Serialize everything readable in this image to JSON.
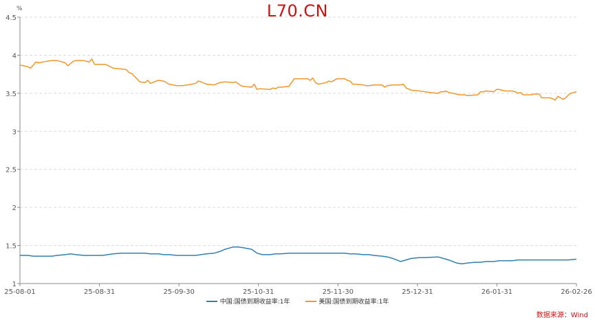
{
  "watermark": "L70.CN",
  "source": "数据来源：Wind",
  "chart_data": {
    "type": "line",
    "title": "",
    "ylabel": "%",
    "xlabel": "",
    "ylim": [
      1,
      4.5
    ],
    "yticks": [
      "1",
      "1.5",
      "2",
      "2.5",
      "3",
      "3.5",
      "4",
      "4.5"
    ],
    "x_tick_labels": [
      "25-08-01",
      "25-08-31",
      "25-09-30",
      "25-10-31",
      "25-11-30",
      "25-12-31",
      "26-01-31",
      "26-02-26"
    ],
    "grid": "horizontal dashed",
    "legend_position": "bottom",
    "colors": {
      "china": "#2f7fb0",
      "us": "#f0962a",
      "watermark": "#cc1111"
    },
    "series": [
      {
        "name": "中国:国债到期收益率:1年",
        "color": "#2f7fb0",
        "points": [
          [
            "2025-08-01",
            1.37
          ],
          [
            "2025-08-04",
            1.37
          ],
          [
            "2025-08-06",
            1.36
          ],
          [
            "2025-08-08",
            1.36
          ],
          [
            "2025-08-11",
            1.36
          ],
          [
            "2025-08-13",
            1.36
          ],
          [
            "2025-08-15",
            1.37
          ],
          [
            "2025-08-18",
            1.38
          ],
          [
            "2025-08-20",
            1.39
          ],
          [
            "2025-08-22",
            1.38
          ],
          [
            "2025-08-25",
            1.37
          ],
          [
            "2025-08-27",
            1.37
          ],
          [
            "2025-08-29",
            1.37
          ],
          [
            "2025-09-01",
            1.37
          ],
          [
            "2025-09-03",
            1.38
          ],
          [
            "2025-09-05",
            1.39
          ],
          [
            "2025-09-08",
            1.4
          ],
          [
            "2025-09-10",
            1.4
          ],
          [
            "2025-09-12",
            1.4
          ],
          [
            "2025-09-15",
            1.4
          ],
          [
            "2025-09-17",
            1.4
          ],
          [
            "2025-09-19",
            1.39
          ],
          [
            "2025-09-22",
            1.39
          ],
          [
            "2025-09-24",
            1.38
          ],
          [
            "2025-09-26",
            1.38
          ],
          [
            "2025-09-29",
            1.37
          ],
          [
            "2025-10-01",
            1.37
          ],
          [
            "2025-10-03",
            1.37
          ],
          [
            "2025-10-06",
            1.37
          ],
          [
            "2025-10-08",
            1.38
          ],
          [
            "2025-10-10",
            1.39
          ],
          [
            "2025-10-13",
            1.4
          ],
          [
            "2025-10-15",
            1.42
          ],
          [
            "2025-10-17",
            1.45
          ],
          [
            "2025-10-20",
            1.48
          ],
          [
            "2025-10-22",
            1.48
          ],
          [
            "2025-10-24",
            1.47
          ],
          [
            "2025-10-27",
            1.45
          ],
          [
            "2025-10-29",
            1.4
          ],
          [
            "2025-10-31",
            1.38
          ],
          [
            "2025-11-03",
            1.38
          ],
          [
            "2025-11-05",
            1.39
          ],
          [
            "2025-11-07",
            1.39
          ],
          [
            "2025-11-10",
            1.4
          ],
          [
            "2025-11-12",
            1.4
          ],
          [
            "2025-11-14",
            1.4
          ],
          [
            "2025-11-17",
            1.4
          ],
          [
            "2025-11-19",
            1.4
          ],
          [
            "2025-11-21",
            1.4
          ],
          [
            "2025-11-24",
            1.4
          ],
          [
            "2025-11-26",
            1.4
          ],
          [
            "2025-11-28",
            1.4
          ],
          [
            "2025-12-01",
            1.4
          ],
          [
            "2025-12-03",
            1.39
          ],
          [
            "2025-12-05",
            1.39
          ],
          [
            "2025-12-08",
            1.38
          ],
          [
            "2025-12-10",
            1.38
          ],
          [
            "2025-12-12",
            1.37
          ],
          [
            "2025-12-15",
            1.36
          ],
          [
            "2025-12-17",
            1.35
          ],
          [
            "2025-12-19",
            1.33
          ],
          [
            "2025-12-22",
            1.29
          ],
          [
            "2025-12-24",
            1.31
          ],
          [
            "2025-12-26",
            1.33
          ],
          [
            "2025-12-29",
            1.34
          ],
          [
            "2025-12-31",
            1.34
          ],
          [
            "2026-01-05",
            1.35
          ],
          [
            "2026-01-07",
            1.33
          ],
          [
            "2026-01-09",
            1.31
          ],
          [
            "2026-01-12",
            1.27
          ],
          [
            "2026-01-14",
            1.26
          ],
          [
            "2026-01-16",
            1.27
          ],
          [
            "2026-01-19",
            1.28
          ],
          [
            "2026-01-21",
            1.28
          ],
          [
            "2026-01-23",
            1.29
          ],
          [
            "2026-01-26",
            1.29
          ],
          [
            "2026-01-28",
            1.3
          ],
          [
            "2026-01-30",
            1.3
          ],
          [
            "2026-02-02",
            1.3
          ],
          [
            "2026-02-04",
            1.31
          ],
          [
            "2026-02-06",
            1.31
          ],
          [
            "2026-02-09",
            1.31
          ],
          [
            "2026-02-11",
            1.31
          ],
          [
            "2026-02-13",
            1.31
          ],
          [
            "2026-02-16",
            1.31
          ],
          [
            "2026-02-18",
            1.31
          ],
          [
            "2026-02-20",
            1.31
          ],
          [
            "2026-02-23",
            1.31
          ],
          [
            "2026-02-26",
            1.32
          ]
        ]
      },
      {
        "name": "美国:国债到期收益率:1年",
        "color": "#f0962a",
        "points": [
          [
            "2025-08-01",
            3.87
          ],
          [
            "2025-08-04",
            3.85
          ],
          [
            "2025-08-05",
            3.83
          ],
          [
            "2025-08-07",
            3.91
          ],
          [
            "2025-08-08",
            3.9
          ],
          [
            "2025-08-11",
            3.92
          ],
          [
            "2025-08-13",
            3.93
          ],
          [
            "2025-08-15",
            3.93
          ],
          [
            "2025-08-18",
            3.9
          ],
          [
            "2025-08-19",
            3.86
          ],
          [
            "2025-08-21",
            3.92
          ],
          [
            "2025-08-22",
            3.93
          ],
          [
            "2025-08-25",
            3.93
          ],
          [
            "2025-08-27",
            3.91
          ],
          [
            "2025-08-28",
            3.95
          ],
          [
            "2025-08-29",
            3.88
          ],
          [
            "2025-09-02",
            3.88
          ],
          [
            "2025-09-04",
            3.85
          ],
          [
            "2025-09-05",
            3.83
          ],
          [
            "2025-09-08",
            3.82
          ],
          [
            "2025-09-10",
            3.81
          ],
          [
            "2025-09-11",
            3.77
          ],
          [
            "2025-09-12",
            3.76
          ],
          [
            "2025-09-15",
            3.65
          ],
          [
            "2025-09-17",
            3.64
          ],
          [
            "2025-09-18",
            3.67
          ],
          [
            "2025-09-19",
            3.63
          ],
          [
            "2025-09-22",
            3.67
          ],
          [
            "2025-09-24",
            3.66
          ],
          [
            "2025-09-26",
            3.62
          ],
          [
            "2025-09-29",
            3.6
          ],
          [
            "2025-10-01",
            3.6
          ],
          [
            "2025-10-03",
            3.61
          ],
          [
            "2025-10-06",
            3.63
          ],
          [
            "2025-10-07",
            3.66
          ],
          [
            "2025-10-08",
            3.65
          ],
          [
            "2025-10-10",
            3.62
          ],
          [
            "2025-10-13",
            3.61
          ],
          [
            "2025-10-15",
            3.64
          ],
          [
            "2025-10-17",
            3.65
          ],
          [
            "2025-10-20",
            3.64
          ],
          [
            "2025-10-21",
            3.65
          ],
          [
            "2025-10-23",
            3.6
          ],
          [
            "2025-10-24",
            3.59
          ],
          [
            "2025-10-27",
            3.58
          ],
          [
            "2025-10-28",
            3.62
          ],
          [
            "2025-10-29",
            3.55
          ],
          [
            "2025-10-30",
            3.56
          ],
          [
            "2025-11-03",
            3.55
          ],
          [
            "2025-11-04",
            3.57
          ],
          [
            "2025-11-05",
            3.56
          ],
          [
            "2025-11-06",
            3.58
          ],
          [
            "2025-11-07",
            3.58
          ],
          [
            "2025-11-10",
            3.59
          ],
          [
            "2025-11-12",
            3.69
          ],
          [
            "2025-11-14",
            3.69
          ],
          [
            "2025-11-17",
            3.69
          ],
          [
            "2025-11-18",
            3.67
          ],
          [
            "2025-11-19",
            3.7
          ],
          [
            "2025-11-20",
            3.64
          ],
          [
            "2025-11-21",
            3.62
          ],
          [
            "2025-11-24",
            3.64
          ],
          [
            "2025-11-25",
            3.66
          ],
          [
            "2025-11-26",
            3.65
          ],
          [
            "2025-11-28",
            3.69
          ],
          [
            "2025-12-01",
            3.69
          ],
          [
            "2025-12-02",
            3.67
          ],
          [
            "2025-12-03",
            3.66
          ],
          [
            "2025-12-04",
            3.62
          ],
          [
            "2025-12-05",
            3.62
          ],
          [
            "2025-12-08",
            3.61
          ],
          [
            "2025-12-09",
            3.6
          ],
          [
            "2025-12-10",
            3.6
          ],
          [
            "2025-12-12",
            3.61
          ],
          [
            "2025-12-15",
            3.61
          ],
          [
            "2025-12-16",
            3.58
          ],
          [
            "2025-12-17",
            3.6
          ],
          [
            "2025-12-19",
            3.61
          ],
          [
            "2025-12-22",
            3.61
          ],
          [
            "2025-12-23",
            3.62
          ],
          [
            "2025-12-24",
            3.57
          ],
          [
            "2025-12-26",
            3.54
          ],
          [
            "2025-12-29",
            3.53
          ],
          [
            "2025-12-31",
            3.52
          ],
          [
            "2026-01-02",
            3.51
          ],
          [
            "2026-01-05",
            3.5
          ],
          [
            "2026-01-06",
            3.52
          ],
          [
            "2026-01-07",
            3.52
          ],
          [
            "2026-01-08",
            3.53
          ],
          [
            "2026-01-09",
            3.51
          ],
          [
            "2026-01-12",
            3.49
          ],
          [
            "2026-01-13",
            3.48
          ],
          [
            "2026-01-14",
            3.48
          ],
          [
            "2026-01-15",
            3.48
          ],
          [
            "2026-01-16",
            3.47
          ],
          [
            "2026-01-20",
            3.48
          ],
          [
            "2026-01-21",
            3.52
          ],
          [
            "2026-01-22",
            3.52
          ],
          [
            "2026-01-23",
            3.53
          ],
          [
            "2026-01-26",
            3.52
          ],
          [
            "2026-01-27",
            3.55
          ],
          [
            "2026-01-28",
            3.55
          ],
          [
            "2026-01-29",
            3.54
          ],
          [
            "2026-01-30",
            3.53
          ],
          [
            "2026-02-02",
            3.53
          ],
          [
            "2026-02-03",
            3.52
          ],
          [
            "2026-02-04",
            3.5
          ],
          [
            "2026-02-05",
            3.51
          ],
          [
            "2026-02-06",
            3.48
          ],
          [
            "2026-02-09",
            3.48
          ],
          [
            "2026-02-10",
            3.49
          ],
          [
            "2026-02-11",
            3.49
          ],
          [
            "2026-02-12",
            3.49
          ],
          [
            "2026-02-13",
            3.44
          ],
          [
            "2026-02-16",
            3.44
          ],
          [
            "2026-02-17",
            3.43
          ],
          [
            "2026-02-18",
            3.41
          ],
          [
            "2026-02-19",
            3.46
          ],
          [
            "2026-02-20",
            3.44
          ],
          [
            "2026-02-21",
            3.42
          ],
          [
            "2026-02-22",
            3.44
          ],
          [
            "2026-02-23",
            3.48
          ],
          [
            "2026-02-24",
            3.5
          ],
          [
            "2026-02-25",
            3.51
          ],
          [
            "2026-02-26",
            3.52
          ]
        ]
      }
    ]
  }
}
